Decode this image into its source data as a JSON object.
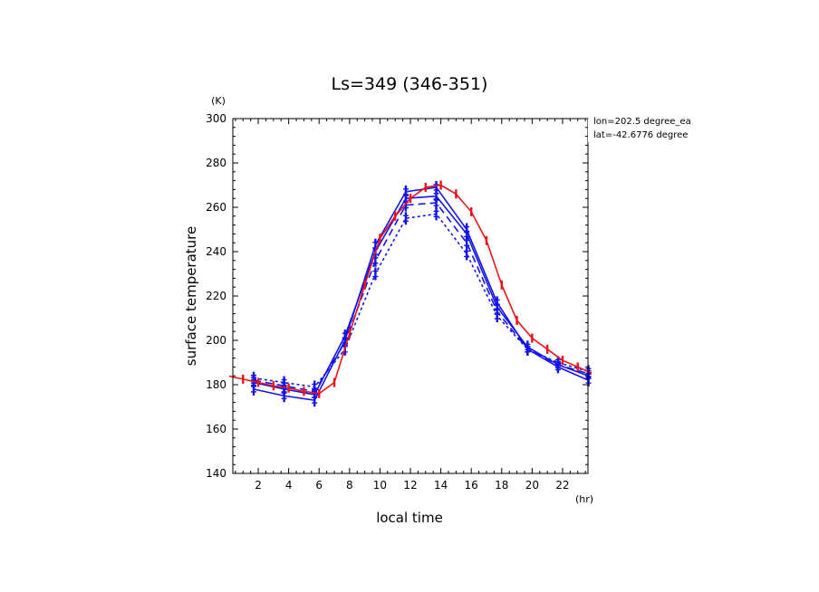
{
  "chart_data": {
    "type": "line",
    "title": "Ls=349 (346-351)",
    "xlabel": "local time",
    "ylabel": "surface temperature",
    "x_unit": "(hr)",
    "y_unit": "(K)",
    "xlim": [
      0.33,
      23.67
    ],
    "ylim": [
      140,
      300
    ],
    "xticks": [
      2,
      4,
      6,
      8,
      10,
      12,
      14,
      16,
      18,
      20,
      22
    ],
    "yticks": [
      140,
      160,
      180,
      200,
      220,
      240,
      260,
      280,
      300
    ],
    "annotations": [
      "lon=202.5 degree_ea",
      "lat=-42.6776 degree"
    ],
    "grid": false,
    "series": [
      {
        "color": "#e8141a",
        "dash": "solid",
        "marker": "vbar",
        "x": [
          0,
          1,
          2,
          3,
          4,
          5,
          6,
          7,
          8,
          9,
          10,
          11,
          12,
          13,
          14,
          15,
          16,
          17,
          18,
          19,
          20,
          21,
          22,
          23,
          24
        ],
        "y": [
          184,
          182.5,
          181,
          179.5,
          178.5,
          177,
          176,
          181,
          203,
          225,
          246,
          256,
          264,
          269,
          270,
          266,
          258,
          245,
          225,
          209,
          201,
          196,
          191,
          188,
          185
        ]
      },
      {
        "color": "#1414e6",
        "dash": "solid",
        "marker": "vbar",
        "x": [
          1.7,
          3.7,
          5.7,
          7.7,
          9.7,
          11.7,
          13.7,
          15.7,
          17.7,
          19.7,
          21.7,
          23.7
        ],
        "y": [
          178,
          175,
          173,
          200,
          243,
          267,
          269,
          250,
          217,
          196,
          188,
          182
        ]
      },
      {
        "color": "#1414e6",
        "dash": "solid",
        "marker": "vbar",
        "x": [
          1.7,
          3.7,
          5.7,
          7.7,
          9.7,
          11.7,
          13.7,
          15.7,
          17.7,
          19.7,
          21.7,
          23.7
        ],
        "y": [
          181,
          178,
          175.5,
          202,
          240,
          264,
          265,
          248,
          215,
          197,
          189,
          184
        ]
      },
      {
        "color": "#1414e6",
        "dash": "8,5",
        "marker": "vbar",
        "x": [
          1.7,
          3.7,
          5.7,
          7.7,
          9.7,
          11.7,
          13.7,
          15.7,
          17.7,
          19.7,
          21.7,
          23.7
        ],
        "y": [
          182,
          179.5,
          177,
          199,
          236,
          261,
          262,
          244,
          213,
          196,
          189,
          185
        ]
      },
      {
        "color": "#1414e6",
        "dash": "3,3",
        "marker": "vbar",
        "x": [
          1.7,
          3.7,
          5.7,
          7.7,
          9.7,
          11.7,
          13.7,
          15.7,
          17.7,
          19.7,
          21.7,
          23.7
        ],
        "y": [
          183,
          181,
          179,
          196,
          230,
          255,
          257,
          239,
          211,
          196,
          190,
          186
        ]
      }
    ]
  }
}
